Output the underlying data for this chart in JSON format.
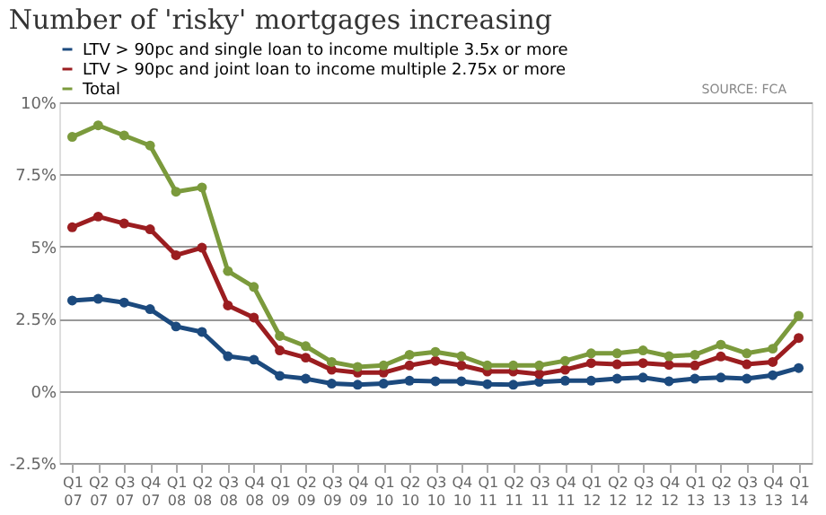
{
  "chart_data": {
    "type": "line",
    "title": "Number of 'risky' mortgages increasing",
    "categories": [
      "Q1 07",
      "Q2 07",
      "Q3 07",
      "Q4 07",
      "Q1 08",
      "Q2 08",
      "Q3 08",
      "Q4 08",
      "Q1 09",
      "Q2 09",
      "Q3 09",
      "Q4 09",
      "Q1 10",
      "Q2 10",
      "Q3 10",
      "Q4 10",
      "Q1 11",
      "Q2 11",
      "Q3 11",
      "Q4 11",
      "Q1 12",
      "Q2 12",
      "Q3 12",
      "Q4 12",
      "Q1 13",
      "Q2 13",
      "Q3 13",
      "Q4 13",
      "Q1 14"
    ],
    "series": [
      {
        "name": "LTV > 90pc and single loan to income multiple 3.5x or more",
        "color": "#1c4a7e",
        "values": [
          3.13,
          3.19,
          3.06,
          2.83,
          2.23,
          2.04,
          1.2,
          1.08,
          0.52,
          0.42,
          0.25,
          0.21,
          0.25,
          0.35,
          0.33,
          0.33,
          0.23,
          0.21,
          0.31,
          0.35,
          0.35,
          0.42,
          0.46,
          0.33,
          0.42,
          0.46,
          0.42,
          0.54,
          0.79
        ]
      },
      {
        "name": "LTV > 90pc and joint loan to income multiple 2.75x or more",
        "color": "#9b1d20",
        "values": [
          5.67,
          6.04,
          5.8,
          5.6,
          4.7,
          4.96,
          2.96,
          2.54,
          1.4,
          1.15,
          0.73,
          0.63,
          0.63,
          0.88,
          1.04,
          0.88,
          0.67,
          0.67,
          0.58,
          0.73,
          0.96,
          0.92,
          0.96,
          0.9,
          0.88,
          1.19,
          0.92,
          1.0,
          1.83
        ]
      },
      {
        "name": "Total",
        "color": "#7b9a3c",
        "values": [
          8.8,
          9.2,
          8.85,
          8.5,
          6.9,
          7.05,
          4.15,
          3.6,
          1.9,
          1.55,
          1.0,
          0.83,
          0.88,
          1.25,
          1.35,
          1.2,
          0.88,
          0.88,
          0.88,
          1.04,
          1.3,
          1.3,
          1.4,
          1.2,
          1.25,
          1.6,
          1.3,
          1.46,
          2.6
        ]
      }
    ],
    "ylim": [
      -2.5,
      10
    ],
    "yticks": [
      {
        "value": -2.5,
        "label": "-2.5%"
      },
      {
        "value": 0,
        "label": "0%"
      },
      {
        "value": 2.5,
        "label": "2.5%"
      },
      {
        "value": 5,
        "label": "5%"
      },
      {
        "value": 7.5,
        "label": "7.5%"
      },
      {
        "value": 10,
        "label": "10%"
      }
    ],
    "grid": "y",
    "legend": "top left",
    "marker": "circle",
    "line_style": "solid",
    "annotations": [
      "SOURCE: FCA"
    ]
  }
}
